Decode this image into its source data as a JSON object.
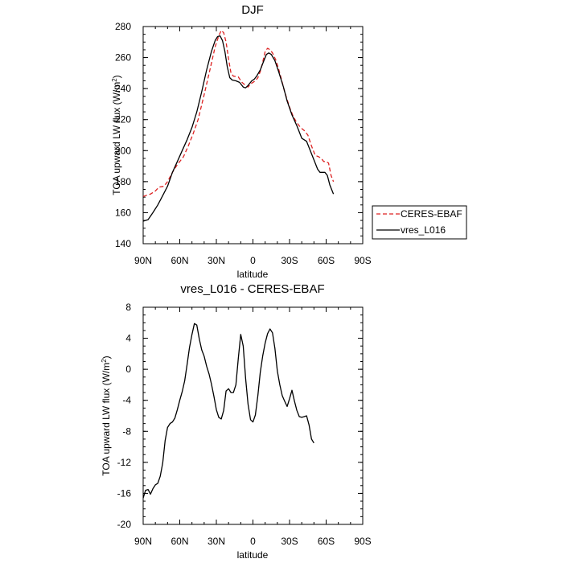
{
  "chart_data": [
    {
      "type": "line",
      "title": "DJF",
      "xlabel": "latitude",
      "ylabel": "TOA upward LW flux (W/m",
      "ylabel_sup": "2",
      "ylabel_close": ")",
      "xlim": [
        -90,
        90
      ],
      "ylim": [
        140,
        280
      ],
      "x_ticks": [
        {
          "value": -90,
          "label": "90N"
        },
        {
          "value": -60,
          "label": "60N"
        },
        {
          "value": -30,
          "label": "30N"
        },
        {
          "value": 0,
          "label": "0"
        },
        {
          "value": 30,
          "label": "30S"
        },
        {
          "value": 60,
          "label": "60S"
        },
        {
          "value": 90,
          "label": "90S"
        }
      ],
      "y_ticks": [
        140,
        160,
        180,
        200,
        220,
        240,
        260,
        280
      ],
      "legend_position": "right",
      "series": [
        {
          "name": "CERES-EBAF",
          "color": "#dd2222",
          "dash": "dashed",
          "points": [
            [
              -90,
              170.5
            ],
            [
              -84,
              172
            ],
            [
              -80,
              174
            ],
            [
              -77,
              176.5
            ],
            [
              -73,
              177
            ],
            [
              -70,
              180
            ],
            [
              -66,
              186
            ],
            [
              -62,
              191
            ],
            [
              -57,
              196
            ],
            [
              -53,
              203
            ],
            [
              -49,
              211
            ],
            [
              -45,
              220
            ],
            [
              -40,
              236
            ],
            [
              -35,
              253
            ],
            [
              -31,
              267
            ],
            [
              -28,
              274
            ],
            [
              -26,
              277.5
            ],
            [
              -24,
              276
            ],
            [
              -22,
              270
            ],
            [
              -20,
              259
            ],
            [
              -18,
              250
            ],
            [
              -16,
              248
            ],
            [
              -12,
              247.5
            ],
            [
              -9,
              244
            ],
            [
              -6,
              242
            ],
            [
              -4,
              241
            ],
            [
              -2,
              243
            ],
            [
              2,
              245
            ],
            [
              4,
              247
            ],
            [
              6,
              251
            ],
            [
              8,
              257
            ],
            [
              10,
              264
            ],
            [
              12,
              266
            ],
            [
              14,
              265
            ],
            [
              16,
              263
            ],
            [
              19,
              258
            ],
            [
              22,
              250
            ],
            [
              26,
              238
            ],
            [
              30,
              228
            ],
            [
              33,
              222
            ],
            [
              36,
              218
            ],
            [
              39,
              215
            ],
            [
              42,
              213
            ],
            [
              45,
              210
            ],
            [
              48,
              203
            ],
            [
              51,
              197
            ],
            [
              54,
              196
            ],
            [
              56,
              195
            ],
            [
              58,
              193
            ],
            [
              60,
              193
            ],
            [
              62,
              192
            ],
            [
              64,
              184
            ],
            [
              66,
              180
            ]
          ]
        },
        {
          "name": "vres_L016",
          "color": "#000000",
          "dash": "solid",
          "points": [
            [
              -90,
              154.5
            ],
            [
              -86,
              155.5
            ],
            [
              -82,
              160
            ],
            [
              -78,
              165
            ],
            [
              -74,
              171
            ],
            [
              -70,
              177
            ],
            [
              -66,
              186
            ],
            [
              -62,
              193
            ],
            [
              -58,
              200
            ],
            [
              -54,
              207
            ],
            [
              -50,
              215
            ],
            [
              -46,
              225
            ],
            [
              -42,
              238
            ],
            [
              -38,
              252
            ],
            [
              -34,
              264
            ],
            [
              -31,
              271
            ],
            [
              -29,
              273.5
            ],
            [
              -27,
              274
            ],
            [
              -25,
              271
            ],
            [
              -23,
              264
            ],
            [
              -21,
              254
            ],
            [
              -19,
              247
            ],
            [
              -17,
              245.5
            ],
            [
              -14,
              245
            ],
            [
              -11,
              244
            ],
            [
              -8,
              241
            ],
            [
              -6,
              240.5
            ],
            [
              -4,
              242
            ],
            [
              -1,
              245
            ],
            [
              1,
              246
            ],
            [
              3,
              248
            ],
            [
              6,
              252
            ],
            [
              9,
              258
            ],
            [
              11,
              262
            ],
            [
              13,
              263
            ],
            [
              15,
              262
            ],
            [
              18,
              258
            ],
            [
              21,
              251
            ],
            [
              25,
              241
            ],
            [
              28,
              232
            ],
            [
              32,
              223
            ],
            [
              36,
              216
            ],
            [
              40,
              208
            ],
            [
              44,
              206
            ],
            [
              48,
              198
            ],
            [
              51,
              192
            ],
            [
              53,
              188
            ],
            [
              55,
              186
            ],
            [
              57,
              186
            ],
            [
              59,
              186
            ],
            [
              61,
              184
            ],
            [
              63,
              178
            ],
            [
              66,
              172
            ]
          ]
        }
      ]
    },
    {
      "type": "line",
      "title": "vres_L016 - CERES-EBAF",
      "xlabel": "latitude",
      "ylabel": "TOA upward LW flux (W/m",
      "ylabel_sup": "2",
      "ylabel_close": ")",
      "xlim": [
        -90,
        90
      ],
      "ylim": [
        -20,
        8
      ],
      "x_ticks": [
        {
          "value": -90,
          "label": "90N"
        },
        {
          "value": -60,
          "label": "60N"
        },
        {
          "value": -30,
          "label": "30N"
        },
        {
          "value": 0,
          "label": "0"
        },
        {
          "value": 30,
          "label": "30S"
        },
        {
          "value": 60,
          "label": "60S"
        },
        {
          "value": 90,
          "label": "90S"
        }
      ],
      "y_ticks": [
        -20,
        -16,
        -12,
        -8,
        -4,
        0,
        4,
        8
      ],
      "series": [
        {
          "name": "",
          "color": "#000000",
          "dash": "solid",
          "points": [
            [
              -90,
              -16.6
            ],
            [
              -88,
              -15.6
            ],
            [
              -86,
              -15.5
            ],
            [
              -84,
              -16.1
            ],
            [
              -82,
              -15.4
            ],
            [
              -80,
              -14.9
            ],
            [
              -78,
              -14.7
            ],
            [
              -76,
              -13.8
            ],
            [
              -74,
              -12.1
            ],
            [
              -72,
              -9.2
            ],
            [
              -70,
              -7.5
            ],
            [
              -68,
              -7.0
            ],
            [
              -66,
              -6.8
            ],
            [
              -64,
              -6.3
            ],
            [
              -62,
              -5.2
            ],
            [
              -60,
              -4.0
            ],
            [
              -58,
              -2.9
            ],
            [
              -56,
              -1.5
            ],
            [
              -54,
              0.6
            ],
            [
              -52,
              2.8
            ],
            [
              -50,
              4.5
            ],
            [
              -48,
              5.9
            ],
            [
              -46,
              5.7
            ],
            [
              -44,
              3.9
            ],
            [
              -42,
              2.5
            ],
            [
              -40,
              1.7
            ],
            [
              -38,
              0.4
            ],
            [
              -36,
              -0.6
            ],
            [
              -34,
              -1.9
            ],
            [
              -32,
              -3.5
            ],
            [
              -30,
              -5.2
            ],
            [
              -28,
              -6.2
            ],
            [
              -26,
              -6.4
            ],
            [
              -24,
              -5.3
            ],
            [
              -22,
              -2.8
            ],
            [
              -20,
              -2.5
            ],
            [
              -18,
              -3.0
            ],
            [
              -16,
              -3.0
            ],
            [
              -14,
              -2.0
            ],
            [
              -12,
              1.4
            ],
            [
              -10,
              4.5
            ],
            [
              -8,
              3.0
            ],
            [
              -6,
              -1.2
            ],
            [
              -4,
              -4.5
            ],
            [
              -2,
              -6.5
            ],
            [
              0,
              -6.8
            ],
            [
              2,
              -5.9
            ],
            [
              4,
              -3.4
            ],
            [
              6,
              -0.4
            ],
            [
              8,
              1.7
            ],
            [
              10,
              3.4
            ],
            [
              12,
              4.6
            ],
            [
              14,
              5.2
            ],
            [
              16,
              4.7
            ],
            [
              18,
              2.7
            ],
            [
              20,
              -0.2
            ],
            [
              22,
              -2.0
            ],
            [
              24,
              -3.4
            ],
            [
              26,
              -4.1
            ],
            [
              28,
              -4.8
            ],
            [
              30,
              -3.8
            ],
            [
              32,
              -2.7
            ],
            [
              34,
              -4.1
            ],
            [
              36,
              -5.3
            ],
            [
              38,
              -6.1
            ],
            [
              40,
              -6.2
            ],
            [
              42,
              -6.1
            ],
            [
              44,
              -6.0
            ],
            [
              46,
              -7.2
            ],
            [
              48,
              -9.0
            ],
            [
              50,
              -9.5
            ]
          ]
        }
      ]
    }
  ]
}
